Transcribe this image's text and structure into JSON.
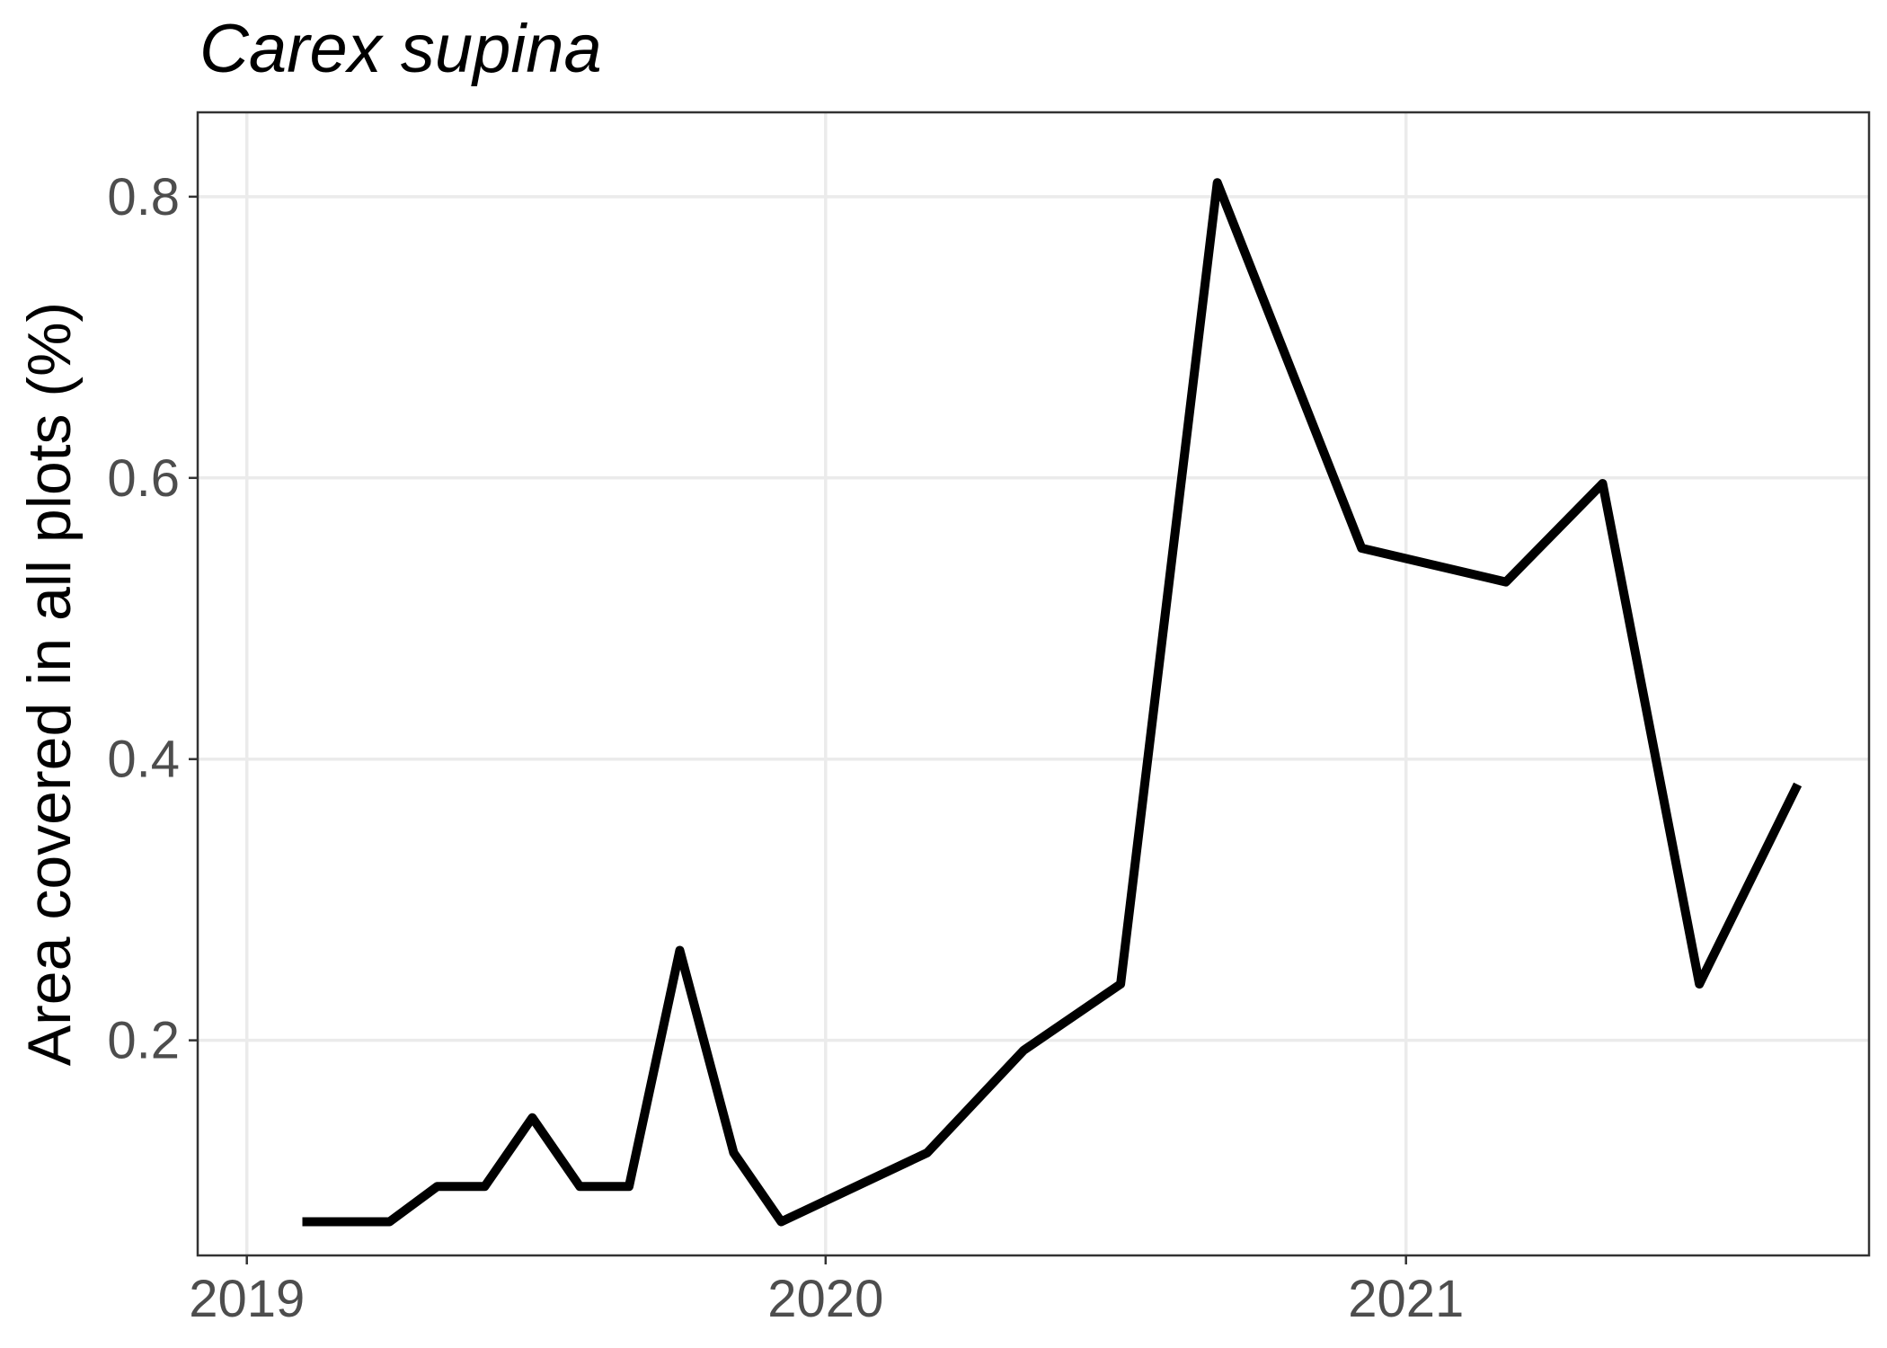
{
  "chart_data": {
    "type": "line",
    "title": "Carex supina",
    "xlabel": "",
    "ylabel": "Area covered in all plots (%)",
    "x_tick_labels": [
      "2019",
      "2020",
      "2021"
    ],
    "y_tick_labels": [
      "0.2",
      "0.4",
      "0.6",
      "0.8"
    ],
    "xlim": [
      "2018-12-01",
      "2021-10-20"
    ],
    "ylim": [
      0.047,
      0.86
    ],
    "grid": true,
    "legend": "none",
    "line_color": "#000000",
    "series": [
      {
        "x": [
          "2019-02-05",
          "2019-04-01",
          "2019-05-01",
          "2019-05-31",
          "2019-06-30",
          "2019-07-30",
          "2019-08-30",
          "2019-10-01",
          "2019-11-04",
          "2019-12-04",
          "2020-03-05",
          "2020-05-05",
          "2020-07-05",
          "2020-09-04",
          "2020-12-04",
          "2021-03-05",
          "2021-05-05",
          "2021-07-05",
          "2021-09-05"
        ],
        "y": [
          0.071,
          0.071,
          0.096,
          0.096,
          0.145,
          0.096,
          0.096,
          0.264,
          0.12,
          0.071,
          0.12,
          0.193,
          0.24,
          0.81,
          0.55,
          0.526,
          0.596,
          0.24,
          0.382
        ]
      }
    ]
  }
}
